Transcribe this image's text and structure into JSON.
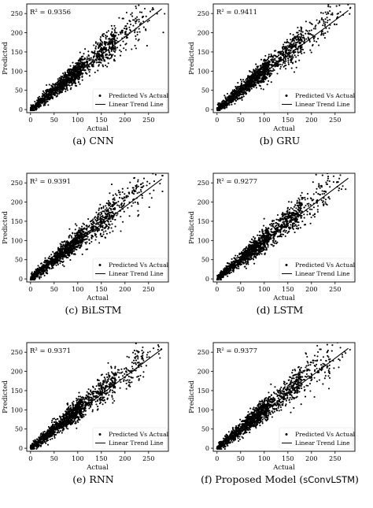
{
  "figure": {
    "panels": [
      {
        "id": "a",
        "caption_prefix": "(a) ",
        "caption_model": "CNN",
        "caption_mono": "",
        "caption_suffix": "",
        "r2": "R² = 0.9356",
        "xlabel": "Actual",
        "ylabel": "Predicted"
      },
      {
        "id": "b",
        "caption_prefix": "(b) ",
        "caption_model": "GRU",
        "caption_mono": "",
        "caption_suffix": "",
        "r2": "R² = 0.9411",
        "xlabel": "Actual",
        "ylabel": "Predicted"
      },
      {
        "id": "c",
        "caption_prefix": "(c) ",
        "caption_model": "BiLSTM",
        "caption_mono": "",
        "caption_suffix": "",
        "r2": "R² = 0.9391",
        "xlabel": "Actual",
        "ylabel": "Predicted"
      },
      {
        "id": "d",
        "caption_prefix": "(d) ",
        "caption_model": "LSTM",
        "caption_mono": "",
        "caption_suffix": "",
        "r2": "R² = 0.9277",
        "xlabel": "Actual",
        "ylabel": "Predicted"
      },
      {
        "id": "e",
        "caption_prefix": "(e) ",
        "caption_model": "RNN",
        "caption_mono": "",
        "caption_suffix": "",
        "r2": "R² = 0.9371",
        "xlabel": "Actual",
        "ylabel": "Predicted"
      },
      {
        "id": "f",
        "caption_prefix": "(f) ",
        "caption_model": "Proposed Model (",
        "caption_mono": "sConvLSTM",
        "caption_suffix": ")",
        "r2": "R² = 0.9377",
        "xlabel": "Actual",
        "ylabel": "Predicted"
      }
    ],
    "legend": {
      "scatter": "Predicted Vs Actual",
      "line": "Linear Trend Line"
    }
  },
  "chart_data": [
    {
      "type": "scatter",
      "model": "CNN",
      "r2": 0.9356,
      "xlabel": "Actual",
      "ylabel": "Predicted",
      "xlim": [
        -8,
        292
      ],
      "ylim": [
        -8,
        275
      ],
      "xticks": [
        0,
        50,
        100,
        150,
        200,
        250
      ],
      "yticks": [
        0,
        50,
        100,
        150,
        200,
        250
      ],
      "series": [
        {
          "name": "Predicted Vs Actual",
          "kind": "points",
          "approx_n": 5000,
          "x_range": [
            0,
            280
          ],
          "relation": "y ≈ x with spread increasing with x"
        },
        {
          "name": "Linear Trend Line",
          "kind": "line",
          "x": [
            0,
            278
          ],
          "y": [
            2,
            262
          ]
        }
      ],
      "legend": "bottom-right",
      "grid": false
    },
    {
      "type": "scatter",
      "model": "GRU",
      "r2": 0.9411,
      "xlabel": "Actual",
      "ylabel": "Predicted",
      "xlim": [
        -8,
        292
      ],
      "ylim": [
        -8,
        275
      ],
      "xticks": [
        0,
        50,
        100,
        150,
        200,
        250
      ],
      "yticks": [
        0,
        50,
        100,
        150,
        200,
        250
      ],
      "series": [
        {
          "name": "Predicted Vs Actual",
          "kind": "points",
          "approx_n": 5000,
          "x_range": [
            0,
            280
          ],
          "relation": "y ≈ x with spread increasing with x"
        },
        {
          "name": "Linear Trend Line",
          "kind": "line",
          "x": [
            0,
            278
          ],
          "y": [
            4,
            258
          ]
        }
      ],
      "legend": "bottom-right",
      "grid": false
    },
    {
      "type": "scatter",
      "model": "BiLSTM",
      "r2": 0.9391,
      "xlabel": "Actual",
      "ylabel": "Predicted",
      "xlim": [
        -8,
        292
      ],
      "ylim": [
        -8,
        275
      ],
      "xticks": [
        0,
        50,
        100,
        150,
        200,
        250
      ],
      "yticks": [
        0,
        50,
        100,
        150,
        200,
        250
      ],
      "series": [
        {
          "name": "Predicted Vs Actual",
          "kind": "points",
          "approx_n": 5000,
          "x_range": [
            0,
            280
          ],
          "relation": "y ≈ x with spread increasing with x"
        },
        {
          "name": "Linear Trend Line",
          "kind": "line",
          "x": [
            0,
            278
          ],
          "y": [
            3,
            260
          ]
        }
      ],
      "legend": "bottom-right",
      "grid": false
    },
    {
      "type": "scatter",
      "model": "LSTM",
      "r2": 0.9277,
      "xlabel": "Actual",
      "ylabel": "Predicted",
      "xlim": [
        -8,
        292
      ],
      "ylim": [
        -8,
        275
      ],
      "xticks": [
        0,
        50,
        100,
        150,
        200,
        250
      ],
      "yticks": [
        0,
        50,
        100,
        150,
        200,
        250
      ],
      "series": [
        {
          "name": "Predicted Vs Actual",
          "kind": "points",
          "approx_n": 5000,
          "x_range": [
            0,
            280
          ],
          "relation": "y ≈ x with spread increasing with x"
        },
        {
          "name": "Linear Trend Line",
          "kind": "line",
          "x": [
            0,
            278
          ],
          "y": [
            5,
            262
          ]
        }
      ],
      "legend": "bottom-right",
      "grid": false
    },
    {
      "type": "scatter",
      "model": "RNN",
      "r2": 0.9371,
      "xlabel": "Actual",
      "ylabel": "Predicted",
      "xlim": [
        -8,
        292
      ],
      "ylim": [
        -8,
        275
      ],
      "xticks": [
        0,
        50,
        100,
        150,
        200,
        250
      ],
      "yticks": [
        0,
        50,
        100,
        150,
        200,
        250
      ],
      "series": [
        {
          "name": "Predicted Vs Actual",
          "kind": "points",
          "approx_n": 5000,
          "x_range": [
            0,
            280
          ],
          "relation": "y ≈ x with spread increasing with x"
        },
        {
          "name": "Linear Trend Line",
          "kind": "line",
          "x": [
            0,
            278
          ],
          "y": [
            2,
            258
          ]
        }
      ],
      "legend": "bottom-right",
      "grid": false
    },
    {
      "type": "scatter",
      "model": "Proposed Model (sConvLSTM)",
      "r2": 0.9377,
      "xlabel": "Actual",
      "ylabel": "Predicted",
      "xlim": [
        -8,
        292
      ],
      "ylim": [
        -8,
        275
      ],
      "xticks": [
        0,
        50,
        100,
        150,
        200,
        250
      ],
      "yticks": [
        0,
        50,
        100,
        150,
        200,
        250
      ],
      "series": [
        {
          "name": "Predicted Vs Actual",
          "kind": "points",
          "approx_n": 5000,
          "x_range": [
            0,
            280
          ],
          "relation": "y ≈ x with spread increasing with x"
        },
        {
          "name": "Linear Trend Line",
          "kind": "line",
          "x": [
            0,
            278
          ],
          "y": [
            3,
            260
          ]
        }
      ],
      "legend": "bottom-right",
      "grid": false
    }
  ]
}
